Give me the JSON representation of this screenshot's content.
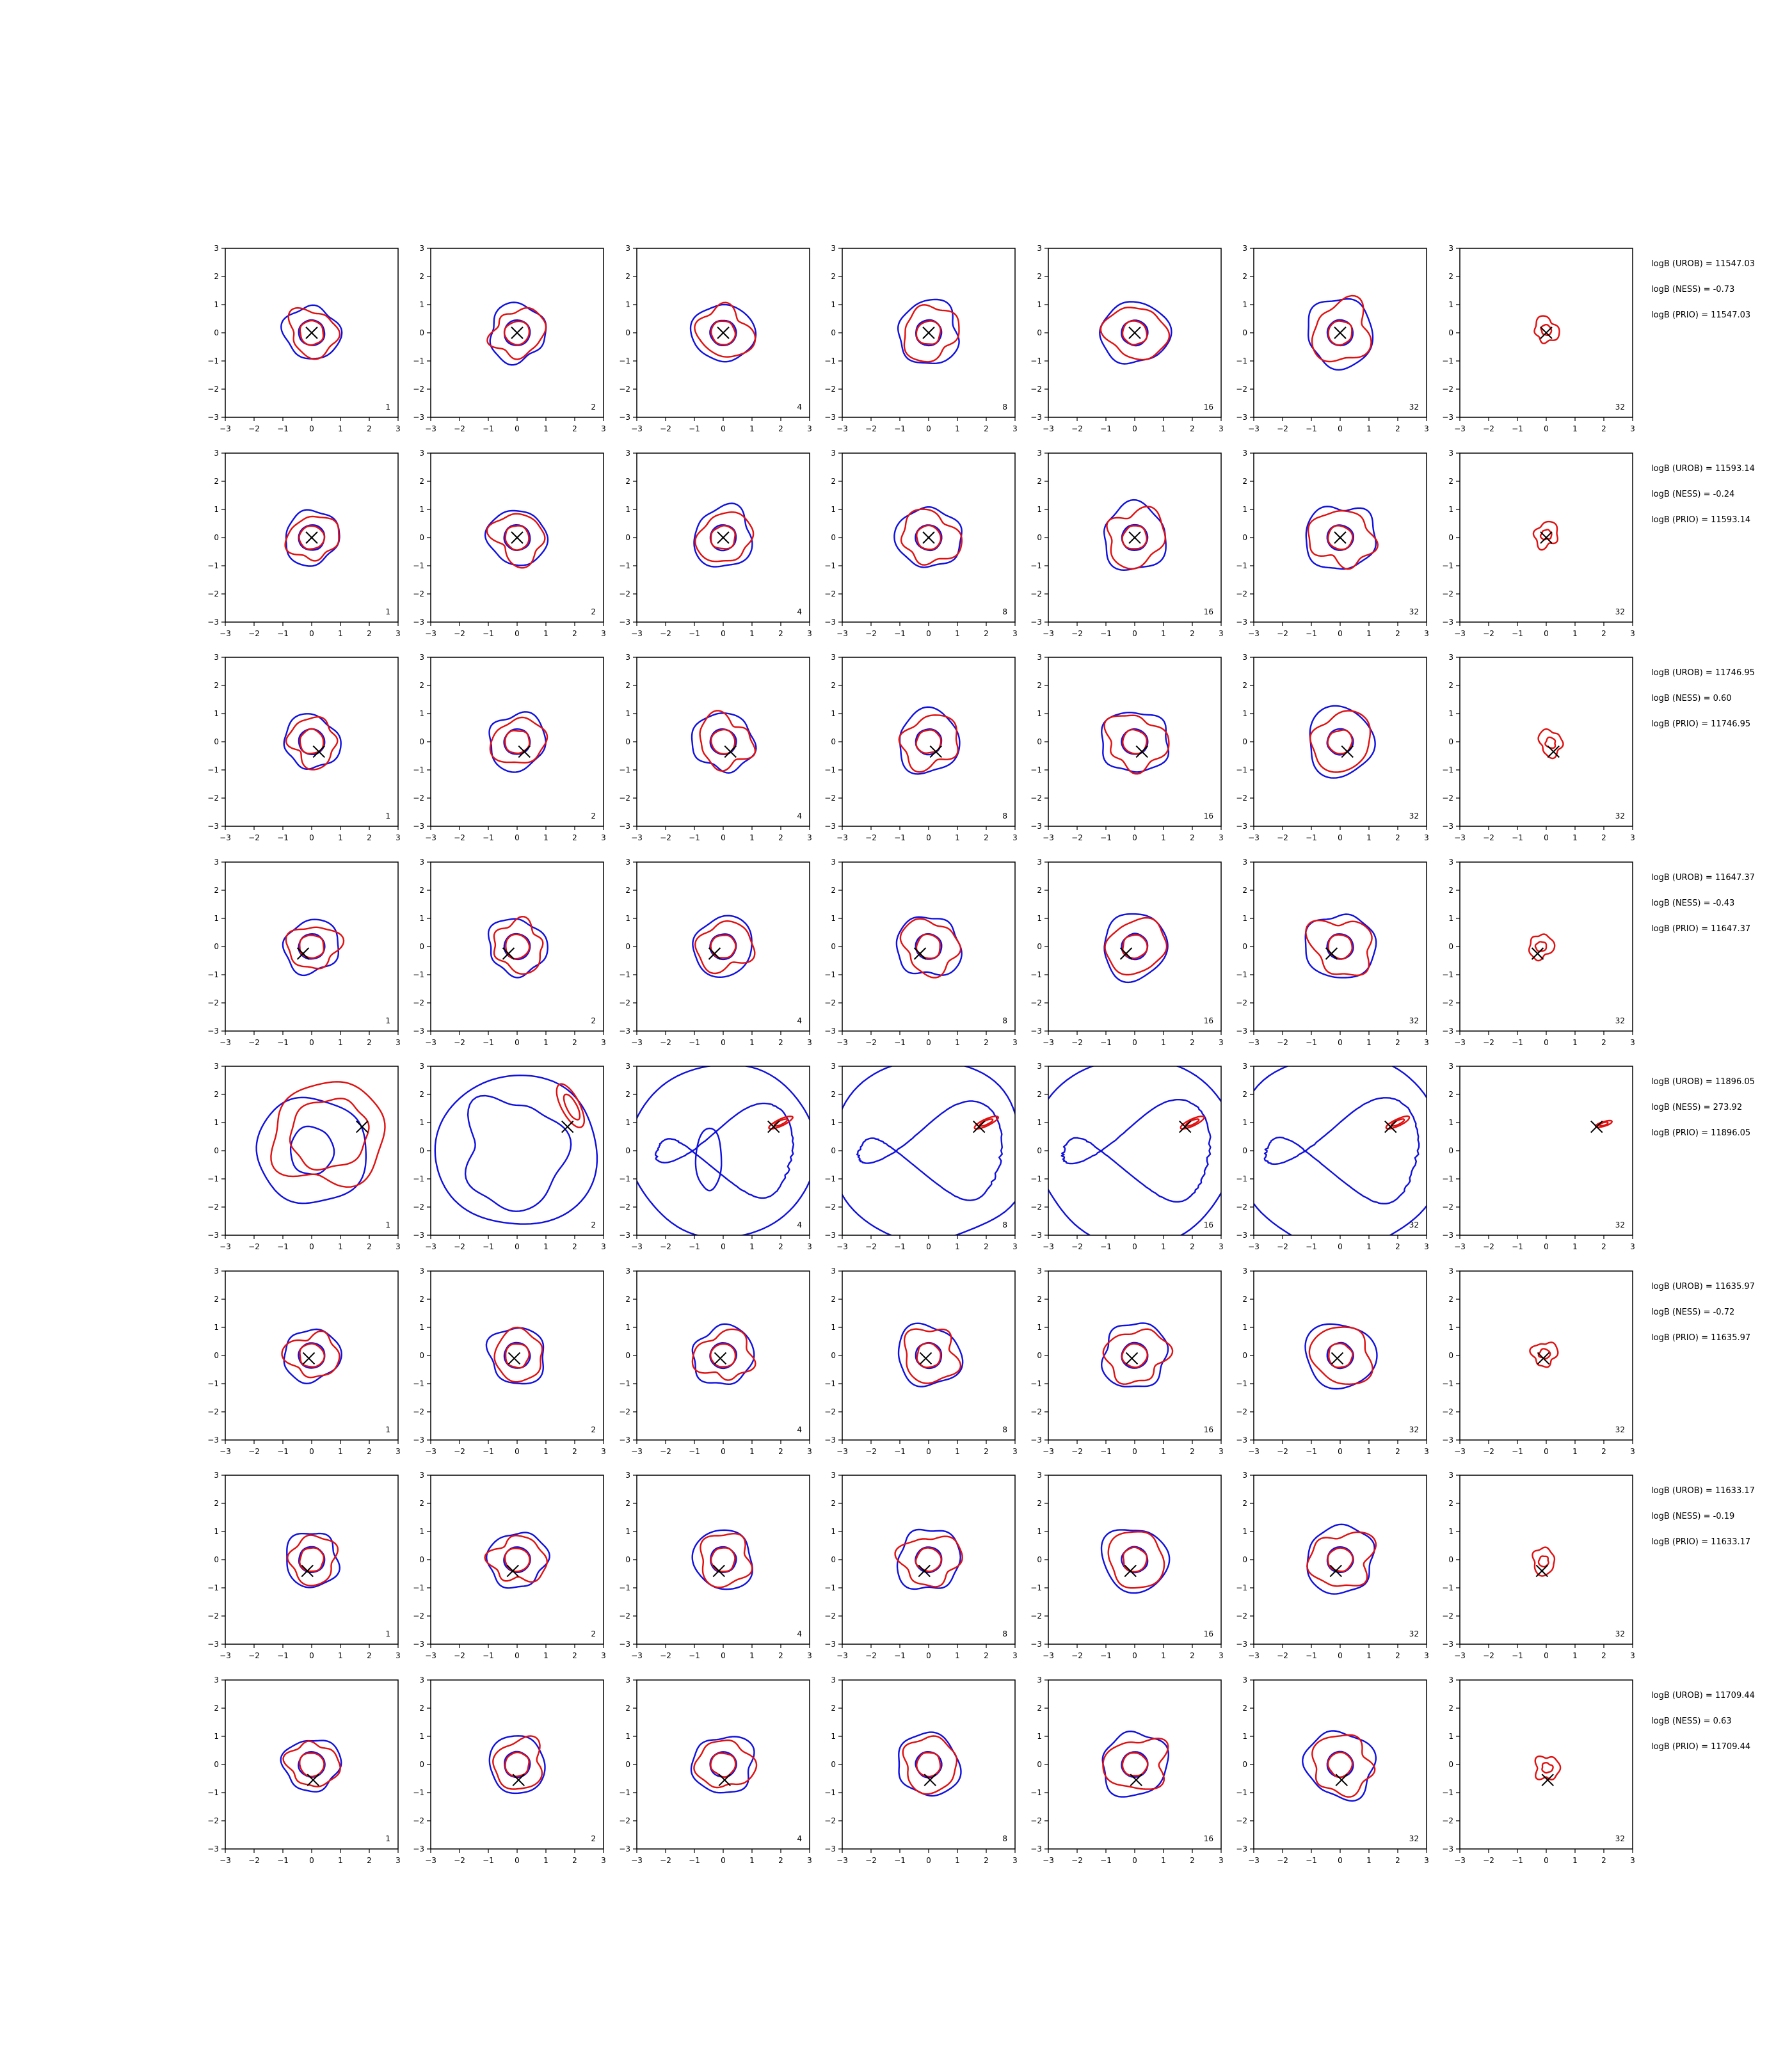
{
  "chart_data": {
    "type": "contour-grid",
    "rows": 8,
    "cols": 7,
    "xlim": [
      -3,
      3
    ],
    "ylim": [
      -3,
      3
    ],
    "xticks": [
      -3,
      -2,
      -1,
      0,
      1,
      2,
      3
    ],
    "yticks": [
      -3,
      -2,
      -1,
      0,
      1,
      2,
      3
    ],
    "colors": {
      "blue": "#1010e0",
      "red": "#e01010",
      "marker": "#000000",
      "axes": "#000000"
    },
    "panel_labels": [
      "1",
      "2",
      "4",
      "8",
      "16",
      "32",
      "32"
    ],
    "grid": false,
    "marker": "x",
    "rows_data": [
      {
        "marker": [
          0.0,
          0.0
        ],
        "logB": [
          "logB (UROB) = 11547.03",
          "logB (NESS) = -0.73",
          "logB (PRIO) = 11547.03"
        ]
      },
      {
        "marker": [
          0.0,
          0.0
        ],
        "logB": [
          "logB (UROB) = 11593.14",
          "logB (NESS) = -0.24",
          "logB (PRIO) = 11593.14"
        ]
      },
      {
        "marker": [
          0.25,
          -0.35
        ],
        "logB": [
          "logB (UROB) = 11746.95",
          "logB (NESS) = 0.60",
          "logB (PRIO) = 11746.95"
        ]
      },
      {
        "marker": [
          -0.3,
          -0.25
        ],
        "logB": [
          "logB (UROB) = 11647.37",
          "logB (NESS) = -0.43",
          "logB (PRIO) = 11647.37"
        ]
      },
      {
        "marker": [
          1.75,
          0.85
        ],
        "logB": [
          "logB (UROB) = 11896.05",
          "logB (NESS) = 273.92",
          "logB (PRIO) = 11896.05"
        ]
      },
      {
        "marker": [
          -0.1,
          -0.1
        ],
        "logB": [
          "logB (UROB) = 11635.97",
          "logB (NESS) = -0.72",
          "logB (PRIO) = 11635.97"
        ]
      },
      {
        "marker": [
          -0.15,
          -0.4
        ],
        "logB": [
          "logB (UROB) = 11633.17",
          "logB (NESS) = -0.19",
          "logB (PRIO) = 11633.17"
        ]
      },
      {
        "marker": [
          0.05,
          -0.55
        ],
        "logB": [
          "logB (UROB) = 11709.44",
          "logB (NESS) = 0.63",
          "logB (PRIO) = 11709.44"
        ]
      }
    ]
  }
}
